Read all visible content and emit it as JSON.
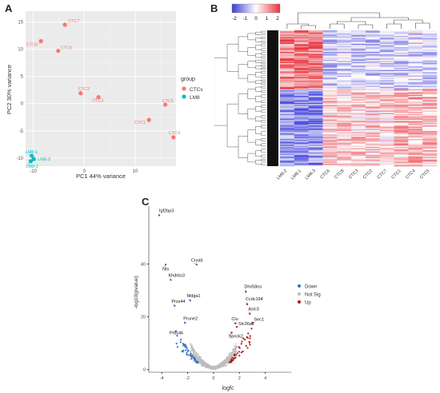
{
  "panels": {
    "a": "A",
    "b": "B",
    "c": "C"
  },
  "chart_data": [
    {
      "type": "scatter",
      "panel": "A",
      "xlabel": "PC1  44% variance",
      "ylabel": "PC2  30% variance",
      "xlim": [
        -11.5,
        18
      ],
      "ylim": [
        -11.5,
        17
      ],
      "xticks": [
        -10,
        0,
        10
      ],
      "yticks": [
        -10,
        -5,
        0,
        5,
        10,
        15
      ],
      "grid": true,
      "legend": {
        "title": "group",
        "position": "right",
        "entries": [
          {
            "name": "CTCs",
            "color": "#f8766d"
          },
          {
            "name": "LM8",
            "color": "#00bfc4"
          }
        ]
      },
      "series": [
        {
          "name": "CTCs",
          "color": "#f8766d",
          "points": [
            {
              "label": "CTC7",
              "x": -3.8,
              "y": 14.5
            },
            {
              "label": "CTC8",
              "x": -8.5,
              "y": 11.5
            },
            {
              "label": "CTC6",
              "x": -5.1,
              "y": 9.7
            },
            {
              "label": "CTC2",
              "x": -0.7,
              "y": 1.9
            },
            {
              "label": "CTC3",
              "x": 2.8,
              "y": 1.2
            },
            {
              "label": "CTC5",
              "x": 15.9,
              "y": -0.2
            },
            {
              "label": "CTC1",
              "x": 12.7,
              "y": -3.0
            },
            {
              "label": "CTC4",
              "x": 17.5,
              "y": -6.2
            }
          ]
        },
        {
          "name": "LM8",
          "color": "#00bfc4",
          "points": [
            {
              "label": "LM8-1",
              "x": -10.3,
              "y": -9.6
            },
            {
              "label": "LM8-3",
              "x": -9.9,
              "y": -10.2
            },
            {
              "label": "LM8-2",
              "x": -10.5,
              "y": -10.6
            }
          ]
        }
      ]
    },
    {
      "type": "heatmap",
      "panel": "B",
      "color_scale": {
        "min": -2,
        "max": 2,
        "ticks": [
          "-2",
          "-1",
          "0",
          "1",
          "2"
        ],
        "low": "#3b3bd9",
        "mid": "#ffffff",
        "high": "#e8323c"
      },
      "columns": [
        "LM8-2",
        "LM8-1",
        "LM8-3",
        "CTC6",
        "CTC8",
        "CTC3",
        "CTC2",
        "CTC7",
        "CTC1",
        "CTC4",
        "CTC5"
      ]
    },
    {
      "type": "scatter",
      "panel": "C",
      "xlabel": "logfc",
      "ylabel": "-log10(pvalue)",
      "xlim": [
        -5,
        6
      ],
      "ylim": [
        -1,
        62
      ],
      "xticks": [
        -4,
        -2,
        0,
        2,
        4
      ],
      "yticks": [
        0,
        20,
        40
      ],
      "grid": false,
      "legend": {
        "position": "right",
        "entries": [
          {
            "name": "Down",
            "color": "#3a6fc4"
          },
          {
            "name": "Not Sig",
            "color": "#bdbdbd"
          },
          {
            "name": "Up",
            "color": "#b01c1c"
          }
        ]
      },
      "labeled_points": [
        {
          "label": "Igf2bp3",
          "x": -4.2,
          "y": 58.5,
          "group": "Down"
        },
        {
          "label": "Nts",
          "x": -3.7,
          "y": 39.8,
          "group": "Down"
        },
        {
          "label": "Cryab",
          "x": -1.3,
          "y": 39.8,
          "group": "Down"
        },
        {
          "label": "Khdrbs3",
          "x": -3.3,
          "y": 34.0,
          "group": "Down"
        },
        {
          "label": "Mdga1",
          "x": -1.8,
          "y": 26.2,
          "group": "Down"
        },
        {
          "label": "Prss44",
          "x": -3.0,
          "y": 24.2,
          "group": "Down"
        },
        {
          "label": "Prune2",
          "x": -2.2,
          "y": 17.7,
          "group": "Down"
        },
        {
          "label": "Prss46",
          "x": -2.9,
          "y": 14.6,
          "group": "Down"
        },
        {
          "label": "Dhx58os",
          "x": 2.5,
          "y": 29.5,
          "group": "Up"
        },
        {
          "label": "Ccdc194",
          "x": 2.6,
          "y": 24.8,
          "group": "Up"
        },
        {
          "label": "Asic3",
          "x": 2.8,
          "y": 21.2,
          "group": "Up"
        },
        {
          "label": "Clu",
          "x": 1.7,
          "y": 17.5,
          "group": "Up"
        },
        {
          "label": "Sec1",
          "x": 3.0,
          "y": 17.7,
          "group": "Up"
        },
        {
          "label": "Slc36a2",
          "x": 1.8,
          "y": 16.2,
          "group": "Up"
        },
        {
          "label": "Spock2",
          "x": 1.4,
          "y": 14.0,
          "group": "Up"
        }
      ]
    }
  ]
}
